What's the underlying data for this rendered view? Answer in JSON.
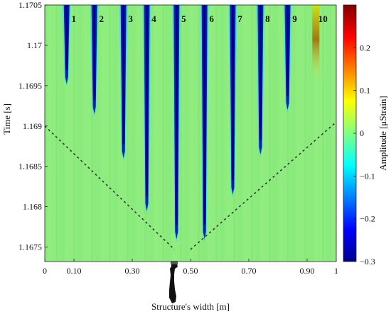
{
  "chart_data": {
    "type": "heatmap",
    "title": "",
    "xlabel": "Structure's width [m]",
    "ylabel": "Time [s]",
    "colorbar_label": "Amplitude [μStrain]",
    "xlim": [
      0,
      1
    ],
    "ylim": [
      1.16732,
      1.1705
    ],
    "clim": [
      -0.3,
      0.3
    ],
    "xticks": [
      0,
      0.1,
      0.3,
      0.5,
      0.7,
      0.9,
      1
    ],
    "xtick_labels": [
      "0",
      "0.10",
      "0.30",
      "0.50",
      "0.70",
      "0.90",
      "1"
    ],
    "yticks": [
      1.1675,
      1.168,
      1.1685,
      1.169,
      1.1695,
      1.17,
      1.1705
    ],
    "ytick_labels": [
      "1.1675",
      "1.168",
      "1.1685",
      "1.169",
      "1.1695",
      "1.17",
      "1.1705"
    ],
    "colorbar_ticks": [
      0.2,
      0.1,
      0,
      -0.1,
      -0.2,
      -0.3
    ],
    "colorbar_tick_labels": [
      "0.2",
      "0.1",
      "0",
      "−0.1",
      "−0.2",
      "−0.3"
    ],
    "colormap": "jet",
    "background_value": 0,
    "grid": false,
    "channels": [
      {
        "label": "1",
        "x": 0.075,
        "arrival_time": 1.16952,
        "min_amplitude": -0.3
      },
      {
        "label": "2",
        "x": 0.17,
        "arrival_time": 1.16915,
        "min_amplitude": -0.3
      },
      {
        "label": "3",
        "x": 0.27,
        "arrival_time": 1.1686,
        "min_amplitude": -0.3
      },
      {
        "label": "4",
        "x": 0.35,
        "arrival_time": 1.16795,
        "min_amplitude": -0.3
      },
      {
        "label": "5",
        "x": 0.452,
        "arrival_time": 1.1676,
        "min_amplitude": -0.3
      },
      {
        "label": "6",
        "x": 0.548,
        "arrival_time": 1.1676,
        "min_amplitude": -0.3
      },
      {
        "label": "7",
        "x": 0.645,
        "arrival_time": 1.16815,
        "min_amplitude": -0.3
      },
      {
        "label": "8",
        "x": 0.74,
        "arrival_time": 1.16865,
        "min_amplitude": -0.3
      },
      {
        "label": "9",
        "x": 0.833,
        "arrival_time": 1.1692,
        "min_amplitude": -0.3
      },
      {
        "label": "10",
        "x": 0.93,
        "arrival_time": 1.16955,
        "min_amplitude": 0.15
      }
    ],
    "wavefront_lines": [
      {
        "points": [
          [
            0,
            1.169
          ],
          [
            0.445,
            1.16747
          ]
        ]
      },
      {
        "points": [
          [
            0.5,
            1.16747
          ],
          [
            1,
            1.16905
          ]
        ]
      }
    ]
  }
}
